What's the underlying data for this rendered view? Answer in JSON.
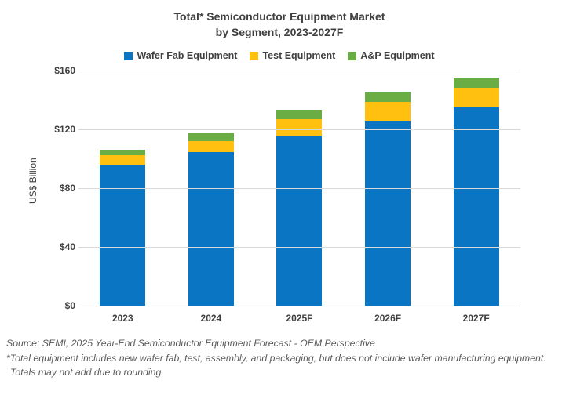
{
  "title": {
    "line1": "Total* Semiconductor Equipment Market",
    "line2": "by Segment, 2023-2027F"
  },
  "y_axis": {
    "title": "US$ Billion",
    "ticks": [
      {
        "value": 160,
        "label": "$160"
      },
      {
        "value": 120,
        "label": "$120"
      },
      {
        "value": 80,
        "label": "$80"
      },
      {
        "value": 40,
        "label": "$40"
      },
      {
        "value": 0,
        "label": "$0"
      }
    ]
  },
  "chart_data": {
    "type": "bar",
    "stacked": true,
    "title": "Total* Semiconductor Equipment Market by Segment, 2023-2027F",
    "categories": [
      "2023",
      "2024",
      "2025F",
      "2026F",
      "2027F"
    ],
    "series": [
      {
        "name": "Wafer Fab Equipment",
        "color": "#0a75c2",
        "values": [
          96.0,
          104.4,
          115.5,
          125.5,
          135.0
        ]
      },
      {
        "name": "Test Equipment",
        "color": "#ffc010",
        "values": [
          6.3,
          7.8,
          11.3,
          13.2,
          13.5
        ]
      },
      {
        "name": "A&P Equipment",
        "color": "#6bad45",
        "values": [
          4.0,
          4.9,
          6.5,
          6.8,
          6.5
        ]
      }
    ],
    "totals_approx": [
      106.3,
      117.1,
      133.3,
      145.5,
      155.0
    ],
    "xlabel": "",
    "ylabel": "US$ Billion",
    "ylim": [
      0,
      160
    ],
    "ytick_step": 40,
    "grid": "horizontal",
    "legend_position": "top",
    "colors": {
      "gridline": "#d9d9d9",
      "axis_text": "#404040",
      "title_text": "#404040",
      "footer_text": "#595959"
    }
  },
  "footer": {
    "line1": "Source: SEMI, 2025 Year-End Semiconductor Equipment Forecast - OEM Perspective",
    "line2": "*Total equipment includes new wafer fab, test, assembly, and packaging, but does not include wafer manufacturing equipment.",
    "line3": "Totals may not add due to rounding."
  }
}
